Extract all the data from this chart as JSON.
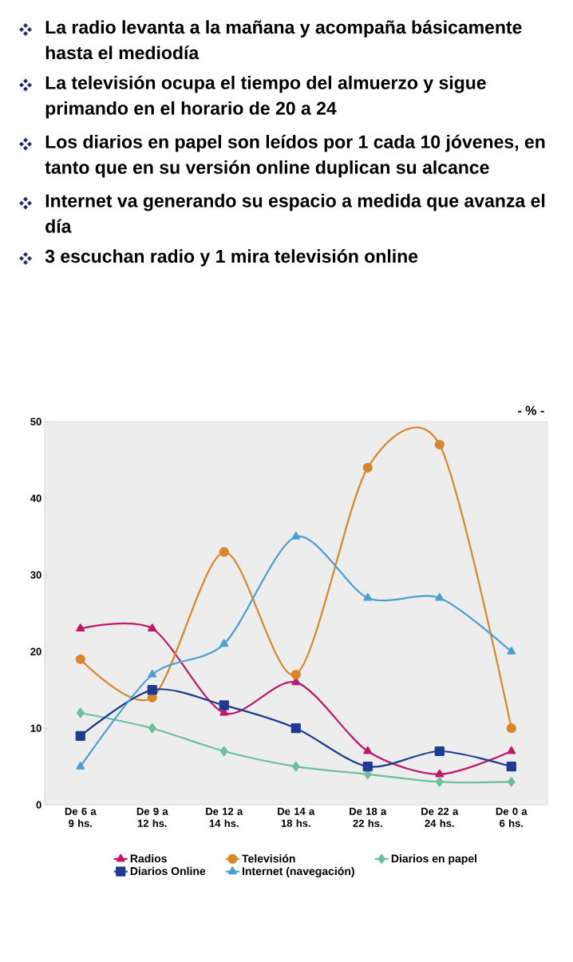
{
  "chart_data": {
    "type": "line",
    "categories": [
      "De 6 a 9 hs.",
      "De 9 a 12 hs.",
      "De 12 a 14 hs.",
      "De 14 a 18 hs.",
      "De 18 a 22 hs.",
      "De 22 a 24 hs.",
      "De 0 a 6 hs."
    ],
    "series": [
      {
        "name": "Radios",
        "color": "#c0186a",
        "marker": "triangle",
        "values": [
          23,
          23,
          12,
          16,
          7,
          4,
          7
        ]
      },
      {
        "name": "Televisión",
        "color": "#d9862a",
        "marker": "circle",
        "values": [
          19,
          14,
          33,
          17,
          44,
          47,
          10
        ]
      },
      {
        "name": "Diarios en papel",
        "color": "#6dbf9c",
        "marker": "diamond",
        "values": [
          12,
          10,
          7,
          5,
          4,
          3,
          3
        ]
      },
      {
        "name": "Diarios Online",
        "color": "#1f3a93",
        "marker": "square",
        "values": [
          9,
          15,
          13,
          10,
          5,
          7,
          5
        ]
      },
      {
        "name": "Internet (navegación)",
        "color": "#4a9fd4",
        "marker": "triangle",
        "values": [
          5,
          17,
          21,
          35,
          27,
          27,
          20
        ]
      }
    ],
    "ylabel": "- % -",
    "ylim": [
      0,
      50
    ],
    "yticks": [
      0,
      10,
      20,
      30,
      40,
      50
    ],
    "legend": "bottom",
    "grid": false,
    "annotations": [
      "La radio levanta a la mañana y acompaña básicamente hasta el mediodía",
      "La televisión ocupa el tiempo del almuerzo y sigue primando en el horario de 20 a 24",
      "Los diarios en papel son leídos por 1 cada 10 jóvenes, en tanto que en su versión online duplican su alcance",
      "Internet va generando su espacio a medida que avanza el día",
      "3 escuchan radio y 1 mira televisión online"
    ]
  }
}
